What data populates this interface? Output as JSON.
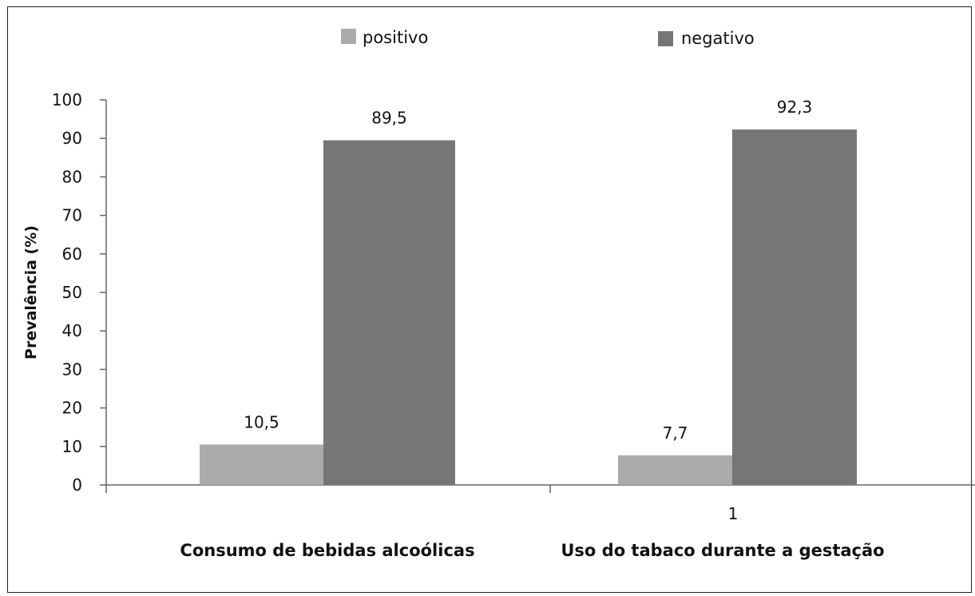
{
  "chart_data": {
    "type": "bar",
    "categories": [
      "Consumo de bebidas alcoólicas",
      "Uso do tabaco durante a gestação"
    ],
    "series": [
      {
        "name": "positivo",
        "values": [
          10.5,
          7.7
        ],
        "labels": [
          "10,5",
          "7,7"
        ],
        "color": "#ababab"
      },
      {
        "name": "negativo",
        "values": [
          89.5,
          92.3
        ],
        "labels": [
          "89,5",
          "92,3"
        ],
        "color": "#767676"
      }
    ],
    "ylabel": "Prevalência (%)",
    "xlabel": "",
    "ylim": [
      0,
      100
    ],
    "yticks": [
      "0",
      "10",
      "20",
      "30",
      "40",
      "50",
      "60",
      "70",
      "80",
      "90",
      "100"
    ],
    "extra_tick_label": "1",
    "legend_position": "top",
    "grid": false
  }
}
